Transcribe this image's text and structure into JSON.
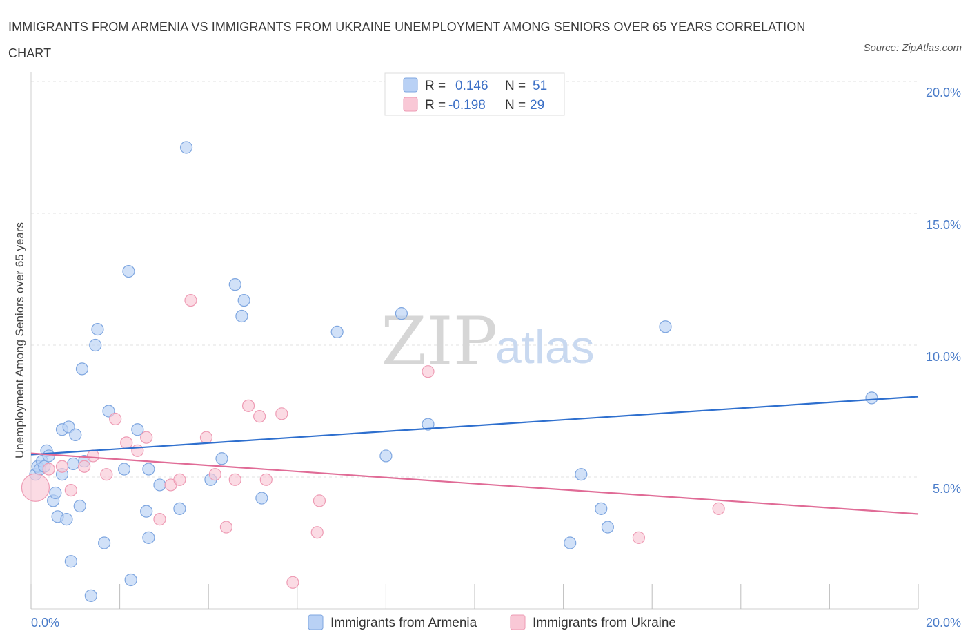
{
  "title": "IMMIGRANTS FROM ARMENIA VS IMMIGRANTS FROM UKRAINE UNEMPLOYMENT AMONG SENIORS OVER 65 YEARS CORRELATION CHART",
  "source": "Source: ZipAtlas.com",
  "watermark": {
    "zip": "ZIP",
    "atlas": "atlas"
  },
  "colors": {
    "armenia_fill": "#b9d1f5",
    "armenia_stroke": "#7ea6e0",
    "armenia_line": "#2e6fce",
    "ukraine_fill": "#f9c8d6",
    "ukraine_stroke": "#ee9bb4",
    "ukraine_line": "#e06b96",
    "grid": "#e2e2e2",
    "tick_text": "#4a7cc9"
  },
  "legend": {
    "armenia": {
      "r_label": "R =",
      "r_value": "0.146",
      "n_label": "N =",
      "n_value": "51"
    },
    "ukraine": {
      "r_label": "R =",
      "r_value": "-0.198",
      "n_label": "N =",
      "n_value": "29"
    }
  },
  "chart_data": {
    "type": "scatter",
    "xlabel": "",
    "ylabel": "Unemployment Among Seniors over 65 years",
    "xlim": [
      0,
      20
    ],
    "ylim": [
      0,
      20
    ],
    "x_tick_labels": [
      "0.0%",
      "20.0%"
    ],
    "y_tick_labels": [
      "5.0%",
      "10.0%",
      "15.0%",
      "20.0%"
    ],
    "y_ticks": [
      5,
      10,
      15,
      20
    ],
    "grid": true,
    "legend_position": "top-center",
    "series": [
      {
        "name": "Immigrants from Armenia",
        "color": "#7ea6e0",
        "points": [
          [
            0.1,
            5.1
          ],
          [
            0.15,
            5.4
          ],
          [
            0.2,
            5.3
          ],
          [
            0.25,
            5.6
          ],
          [
            0.3,
            5.4
          ],
          [
            0.35,
            6.0
          ],
          [
            0.4,
            5.8
          ],
          [
            0.5,
            4.1
          ],
          [
            0.55,
            4.4
          ],
          [
            0.6,
            3.5
          ],
          [
            0.7,
            5.1
          ],
          [
            0.7,
            6.8
          ],
          [
            0.8,
            3.4
          ],
          [
            0.85,
            6.9
          ],
          [
            0.9,
            1.8
          ],
          [
            0.95,
            5.5
          ],
          [
            1.0,
            6.6
          ],
          [
            1.1,
            3.9
          ],
          [
            1.15,
            9.1
          ],
          [
            1.2,
            5.6
          ],
          [
            1.35,
            0.5
          ],
          [
            1.45,
            10.0
          ],
          [
            1.5,
            10.6
          ],
          [
            1.65,
            2.5
          ],
          [
            1.75,
            7.5
          ],
          [
            2.1,
            5.3
          ],
          [
            2.2,
            12.8
          ],
          [
            2.25,
            1.1
          ],
          [
            2.4,
            6.8
          ],
          [
            2.6,
            3.7
          ],
          [
            2.65,
            5.3
          ],
          [
            2.65,
            2.7
          ],
          [
            2.9,
            4.7
          ],
          [
            3.35,
            3.8
          ],
          [
            3.5,
            17.5
          ],
          [
            4.05,
            4.9
          ],
          [
            4.3,
            5.7
          ],
          [
            4.6,
            12.3
          ],
          [
            4.75,
            11.1
          ],
          [
            4.8,
            11.7
          ],
          [
            5.2,
            4.2
          ],
          [
            6.9,
            10.5
          ],
          [
            8.0,
            5.8
          ],
          [
            8.35,
            11.2
          ],
          [
            8.95,
            7.0
          ],
          [
            12.15,
            2.5
          ],
          [
            12.4,
            5.1
          ],
          [
            12.85,
            3.8
          ],
          [
            13.0,
            3.1
          ],
          [
            14.3,
            10.7
          ],
          [
            18.95,
            8.0
          ]
        ]
      },
      {
        "name": "Immigrants from Ukraine",
        "color": "#ee9bb4",
        "points": [
          [
            0.1,
            4.6
          ],
          [
            0.4,
            5.3
          ],
          [
            0.7,
            5.4
          ],
          [
            0.9,
            4.5
          ],
          [
            1.2,
            5.4
          ],
          [
            1.4,
            5.8
          ],
          [
            1.7,
            5.1
          ],
          [
            1.9,
            7.2
          ],
          [
            2.15,
            6.3
          ],
          [
            2.4,
            6.0
          ],
          [
            2.6,
            6.5
          ],
          [
            2.9,
            3.4
          ],
          [
            3.15,
            4.7
          ],
          [
            3.35,
            4.9
          ],
          [
            3.6,
            11.7
          ],
          [
            3.95,
            6.5
          ],
          [
            4.15,
            5.1
          ],
          [
            4.4,
            3.1
          ],
          [
            4.6,
            4.9
          ],
          [
            4.9,
            7.7
          ],
          [
            5.15,
            7.3
          ],
          [
            5.3,
            4.9
          ],
          [
            5.65,
            7.4
          ],
          [
            5.9,
            1.0
          ],
          [
            6.45,
            2.9
          ],
          [
            6.5,
            4.1
          ],
          [
            8.95,
            9.0
          ],
          [
            13.7,
            2.7
          ],
          [
            15.5,
            3.8
          ]
        ]
      }
    ],
    "trend_lines": [
      {
        "series": "Immigrants from Armenia",
        "x": [
          0,
          20
        ],
        "y": [
          5.85,
          8.05
        ]
      },
      {
        "series": "Immigrants from Ukraine",
        "x": [
          0,
          20
        ],
        "y": [
          5.9,
          3.6
        ]
      }
    ]
  },
  "bottom_legend": [
    {
      "label": "Immigrants from Armenia"
    },
    {
      "label": "Immigrants from Ukraine"
    }
  ]
}
